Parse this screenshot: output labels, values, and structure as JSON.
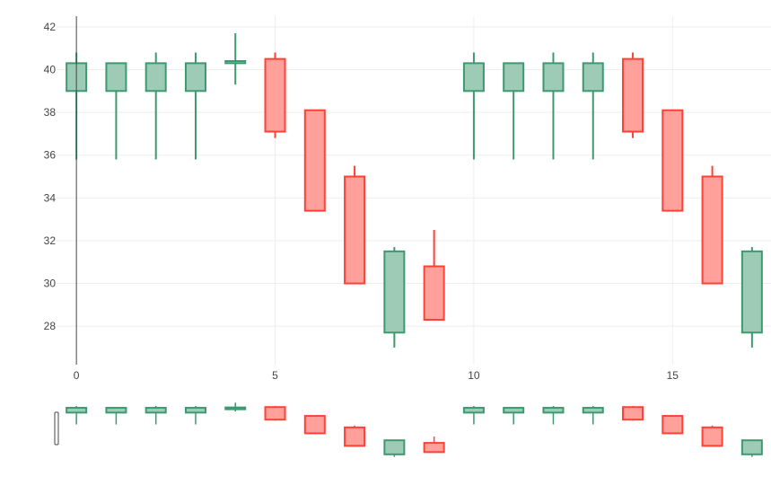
{
  "chart_data": {
    "type": "candlestick",
    "x": [
      0,
      1,
      2,
      3,
      4,
      5,
      6,
      7,
      8,
      9,
      10,
      11,
      12,
      13,
      14,
      15,
      16,
      17
    ],
    "open": [
      39.0,
      39.0,
      39.0,
      39.0,
      40.3,
      40.5,
      38.1,
      35.0,
      27.7,
      30.8,
      39.0,
      39.0,
      39.0,
      39.0,
      40.5,
      38.1,
      35.0,
      27.7
    ],
    "high": [
      40.8,
      40.3,
      40.8,
      40.8,
      41.7,
      40.8,
      38.1,
      35.5,
      31.7,
      32.5,
      40.8,
      40.3,
      40.8,
      40.8,
      40.8,
      38.1,
      35.5,
      31.7
    ],
    "low": [
      35.8,
      35.8,
      35.8,
      35.8,
      39.3,
      36.8,
      33.4,
      30.0,
      27.0,
      28.3,
      35.8,
      35.8,
      35.8,
      35.8,
      36.8,
      33.4,
      30.0,
      27.0
    ],
    "close": [
      40.3,
      40.3,
      40.3,
      40.3,
      40.4,
      37.1,
      33.4,
      30.0,
      31.5,
      28.3,
      40.3,
      40.3,
      40.3,
      40.3,
      37.1,
      33.4,
      30.0,
      31.5
    ],
    "x_ticks": [
      "0",
      "5",
      "10",
      "15"
    ],
    "x_tick_values": [
      0,
      5,
      10,
      15
    ],
    "y_ticks": [
      "28",
      "30",
      "32",
      "34",
      "36",
      "38",
      "40",
      "42"
    ],
    "y_tick_values": [
      28,
      30,
      32,
      34,
      36,
      38,
      40,
      42
    ],
    "xlim": [
      -0.5,
      17.5
    ],
    "ylim": [
      26.2,
      42.5
    ],
    "grid": true,
    "rangeslider": true,
    "colors": {
      "increasing_line": "#3d9970",
      "increasing_fill": "#9ecbb6",
      "decreasing_line": "#ff4136",
      "decreasing_fill": "#ffa09b",
      "grid": "#eeeeee",
      "zero_line": "#444444",
      "tick_text": "#444444"
    }
  }
}
